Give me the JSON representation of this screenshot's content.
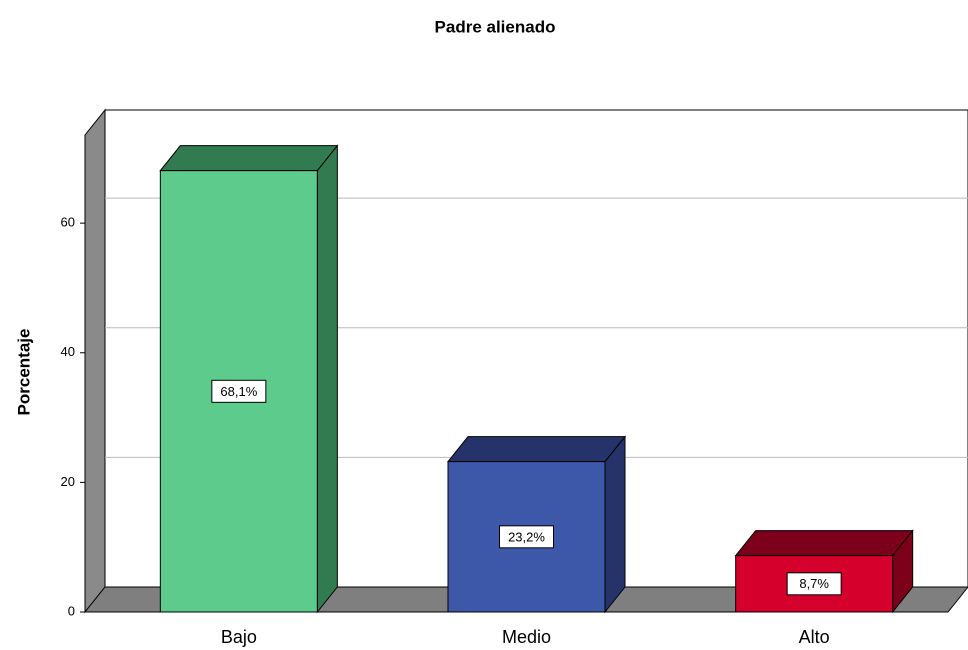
{
  "chart_data": {
    "type": "bar",
    "title": "Padre alienado",
    "y_label": "Porcentaje",
    "categories": [
      "Bajo",
      "Medio",
      "Alto"
    ],
    "values": [
      68.1,
      23.2,
      8.7
    ],
    "value_labels": [
      "68,1%",
      "23,2%",
      "8,7%"
    ],
    "colors": [
      "#5ccb8b",
      "#3e58a9",
      "#d5002b"
    ],
    "side_colors": [
      "#327a50",
      "#26336b",
      "#7c0019"
    ],
    "ylim": [
      0,
      73.6
    ],
    "yticks": [
      0,
      20,
      40,
      60
    ],
    "grid": true
  }
}
